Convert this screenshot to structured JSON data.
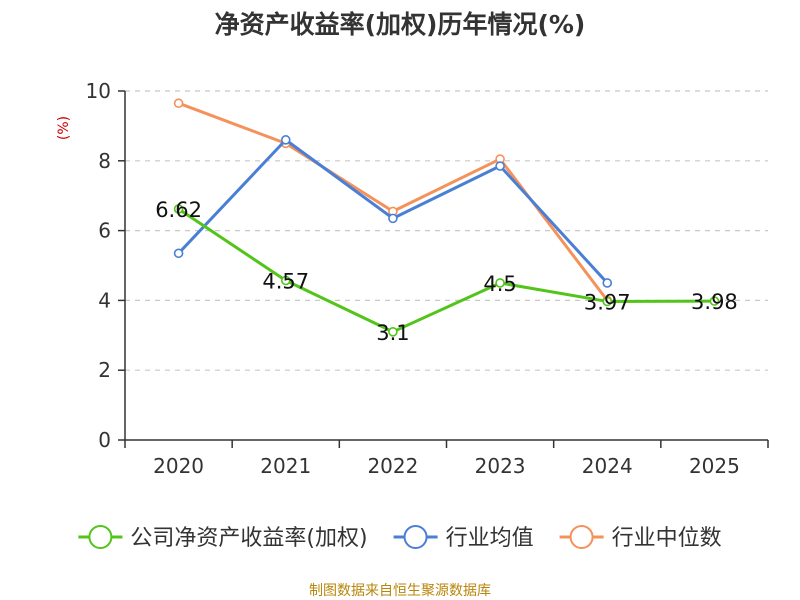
{
  "chart_data": {
    "type": "line",
    "title": "净资产收益率(加权)历年情况(%)",
    "ylabel": "(%)",
    "xlabel": "",
    "categories": [
      "2020",
      "2021",
      "2022",
      "2023",
      "2024",
      "2025"
    ],
    "ylim": [
      0,
      10
    ],
    "yticks": [
      0,
      2,
      4,
      6,
      8,
      10
    ],
    "grid": true,
    "legend_position": "bottom",
    "series": [
      {
        "name": "公司净资产收益率(加权)",
        "color": "#52c41a",
        "values": [
          6.62,
          4.57,
          3.1,
          4.5,
          3.97,
          3.98
        ],
        "labels": [
          "6.62",
          "4.57",
          "3.1",
          "4.5",
          "3.97",
          "3.98"
        ]
      },
      {
        "name": "行业均值",
        "color": "#4a7fd6",
        "values": [
          5.35,
          8.6,
          6.35,
          7.85,
          4.5,
          null
        ]
      },
      {
        "name": "行业中位数",
        "color": "#f5915a",
        "values": [
          9.65,
          8.5,
          6.55,
          8.05,
          4.0,
          null
        ]
      }
    ]
  },
  "source": "制图数据来自恒生聚源数据库"
}
